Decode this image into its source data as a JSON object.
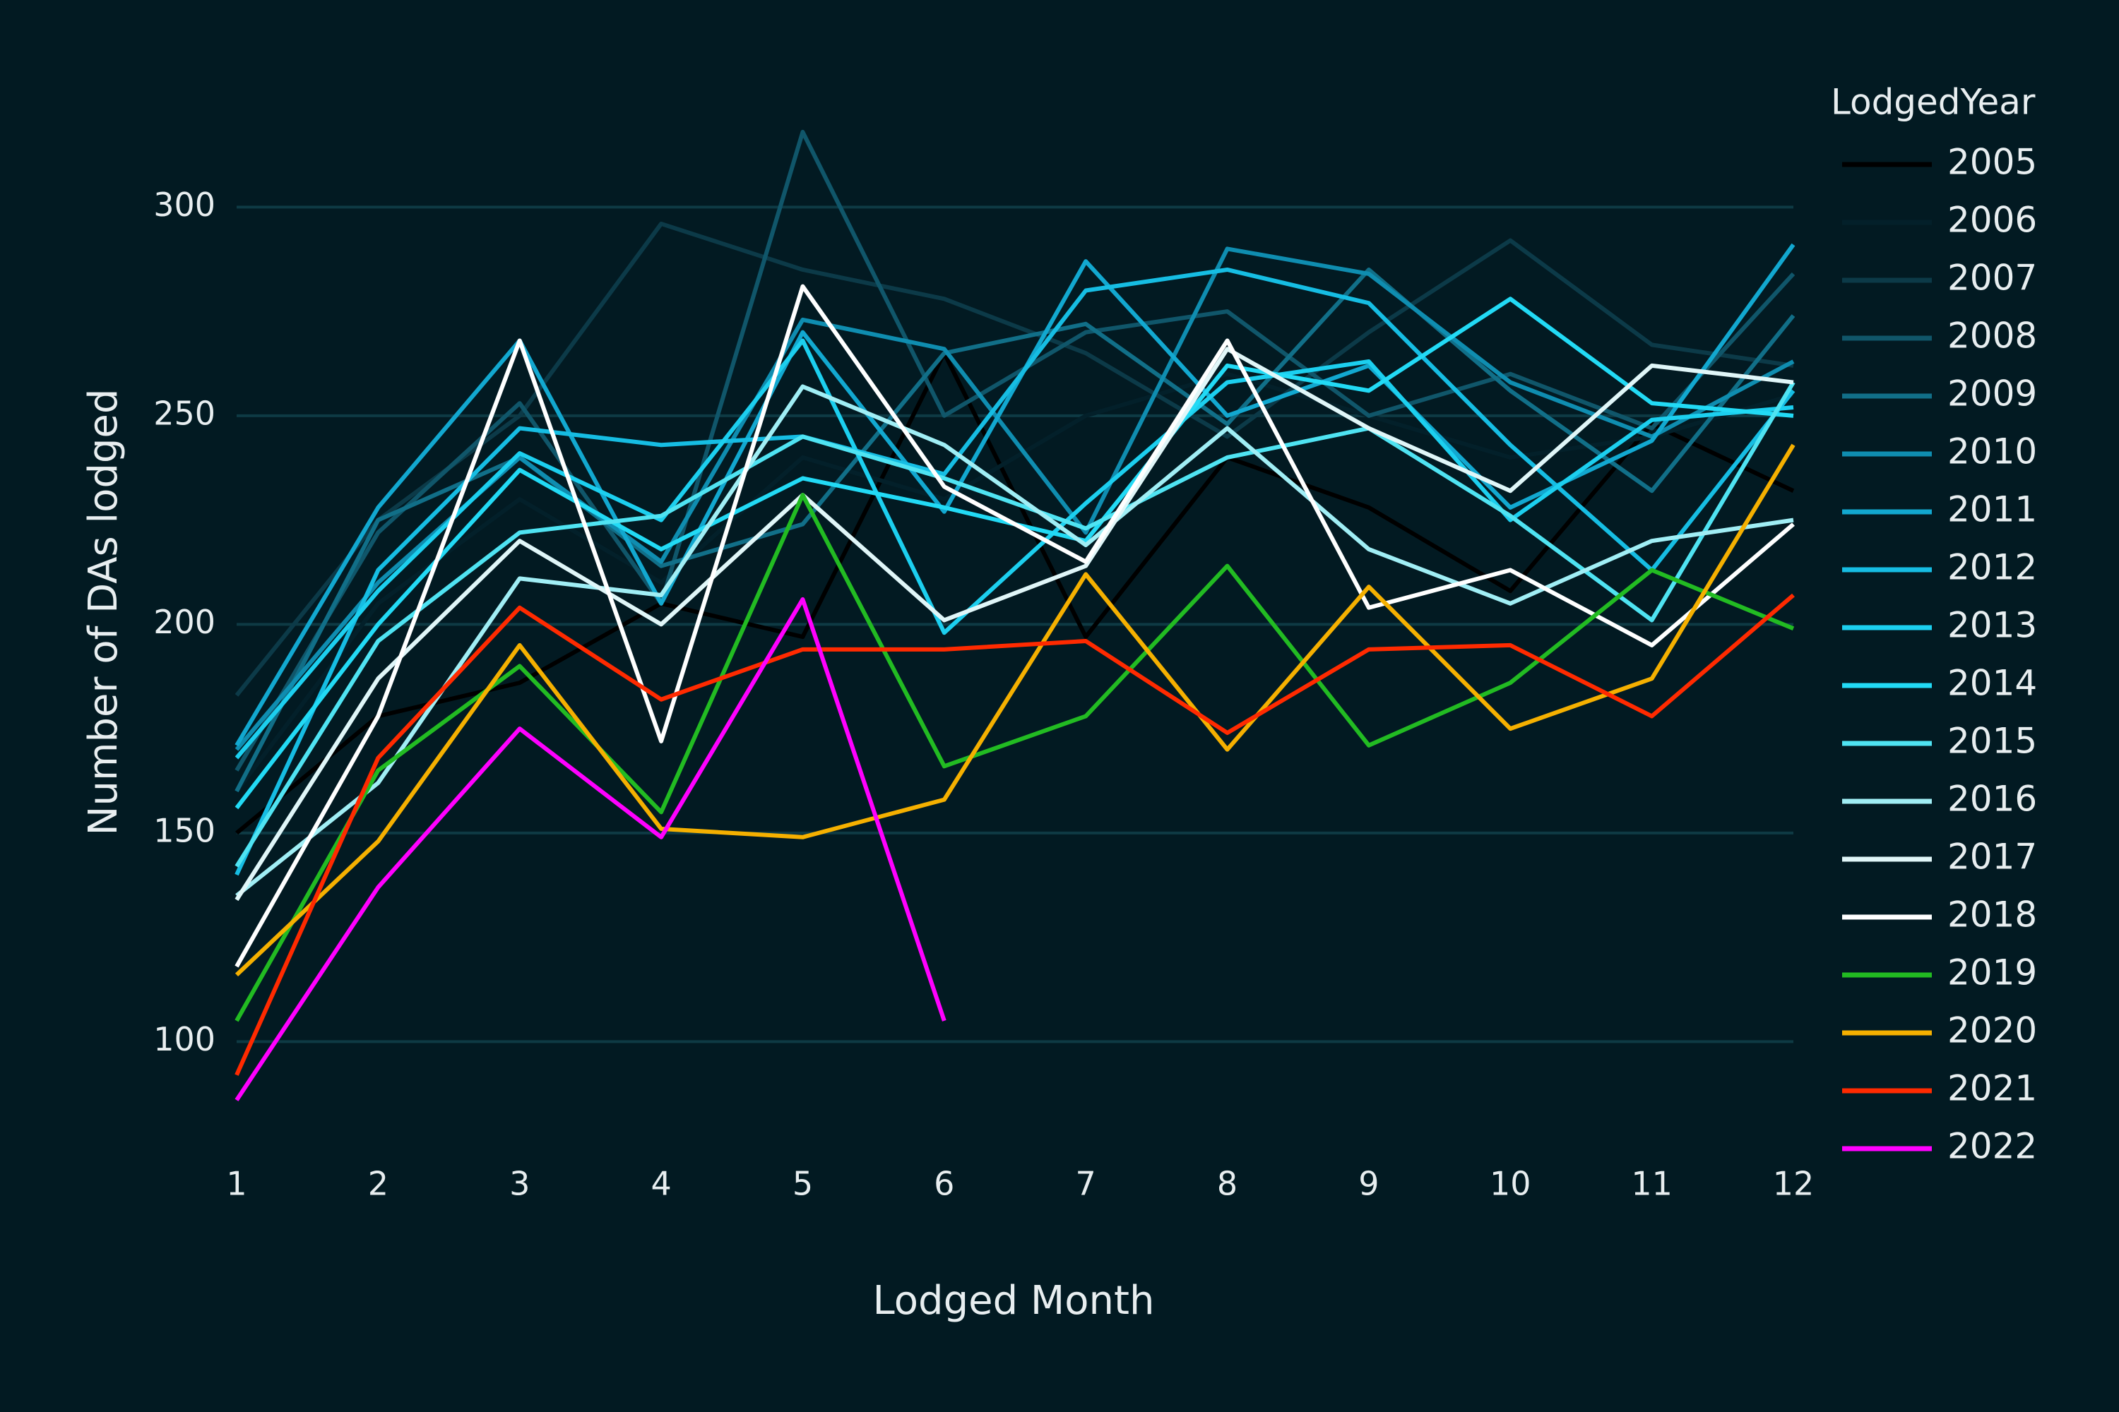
{
  "chart_data": {
    "type": "line",
    "x_label": "Lodged Month",
    "y_label": "Number of DAs lodged",
    "legend_title": "LodgedYear",
    "x": [
      1,
      2,
      3,
      4,
      5,
      6,
      7,
      8,
      9,
      10,
      11,
      12
    ],
    "xlim": [
      1,
      12
    ],
    "xticks": [
      1,
      2,
      3,
      4,
      5,
      6,
      7,
      8,
      9,
      10,
      11,
      12
    ],
    "ylim": [
      73,
      330
    ],
    "yticks": [
      100,
      150,
      200,
      250,
      300
    ],
    "grid": true,
    "legend": "right",
    "series": [
      {
        "name": "2005",
        "color": "#000000",
        "values": [
          150,
          178,
          186,
          205,
          197,
          265,
          197,
          240,
          228,
          208,
          248,
          232
        ]
      },
      {
        "name": "2006",
        "color": "#03202a",
        "values": [
          160,
          205,
          230,
          210,
          240,
          230,
          250,
          260,
          250,
          240,
          245,
          255
        ]
      },
      {
        "name": "2007",
        "color": "#0c3a48",
        "values": [
          183,
          225,
          250,
          296,
          285,
          278,
          265,
          245,
          270,
          292,
          267,
          262
        ]
      },
      {
        "name": "2008",
        "color": "#10566a",
        "values": [
          165,
          222,
          253,
          205,
          318,
          250,
          270,
          275,
          250,
          260,
          247,
          284
        ]
      },
      {
        "name": "2009",
        "color": "#116f88",
        "values": [
          160,
          225,
          240,
          214,
          224,
          265,
          272,
          248,
          285,
          256,
          232,
          274
        ]
      },
      {
        "name": "2010",
        "color": "#0f8db0",
        "values": [
          170,
          210,
          240,
          215,
          273,
          266,
          222,
          290,
          284,
          258,
          245,
          263
        ]
      },
      {
        "name": "2011",
        "color": "#12a8d0",
        "values": [
          171,
          228,
          268,
          205,
          270,
          227,
          287,
          250,
          262,
          228,
          244,
          291
        ]
      },
      {
        "name": "2012",
        "color": "#16bde3",
        "values": [
          140,
          213,
          247,
          243,
          245,
          236,
          280,
          285,
          277,
          243,
          213,
          256
        ]
      },
      {
        "name": "2013",
        "color": "#1ccfef",
        "values": [
          168,
          208,
          241,
          225,
          268,
          198,
          229,
          258,
          263,
          225,
          249,
          252
        ]
      },
      {
        "name": "2014",
        "color": "#22daf5",
        "values": [
          156,
          200,
          237,
          218,
          235,
          228,
          220,
          262,
          256,
          278,
          253,
          250
        ]
      },
      {
        "name": "2015",
        "color": "#4fe3f2",
        "values": [
          142,
          196,
          222,
          226,
          245,
          235,
          223,
          240,
          247,
          226,
          201,
          258
        ]
      },
      {
        "name": "2016",
        "color": "#a0eef5",
        "values": [
          135,
          162,
          211,
          207,
          257,
          243,
          219,
          247,
          218,
          205,
          220,
          225
        ]
      },
      {
        "name": "2017",
        "color": "#e0f6f8",
        "values": [
          134,
          187,
          220,
          200,
          231,
          201,
          214,
          266,
          247,
          232,
          262,
          258
        ]
      },
      {
        "name": "2018",
        "color": "#ffffff",
        "values": [
          118,
          178,
          268,
          172,
          281,
          233,
          215,
          268,
          204,
          213,
          195,
          224
        ]
      },
      {
        "name": "2019",
        "color": "#22bb22",
        "values": [
          105,
          165,
          190,
          155,
          231,
          166,
          178,
          214,
          171,
          186,
          213,
          199
        ]
      },
      {
        "name": "2020",
        "color": "#f5b000",
        "values": [
          116,
          148,
          195,
          151,
          149,
          158,
          212,
          170,
          209,
          175,
          187,
          243
        ]
      },
      {
        "name": "2021",
        "color": "#ff2a00",
        "values": [
          92,
          168,
          204,
          182,
          194,
          194,
          196,
          174,
          194,
          195,
          178,
          207
        ]
      },
      {
        "name": "2022",
        "color": "#ff00ff",
        "values": [
          86,
          137,
          175,
          149,
          206,
          105,
          null,
          null,
          null,
          null,
          null,
          null
        ]
      }
    ]
  }
}
